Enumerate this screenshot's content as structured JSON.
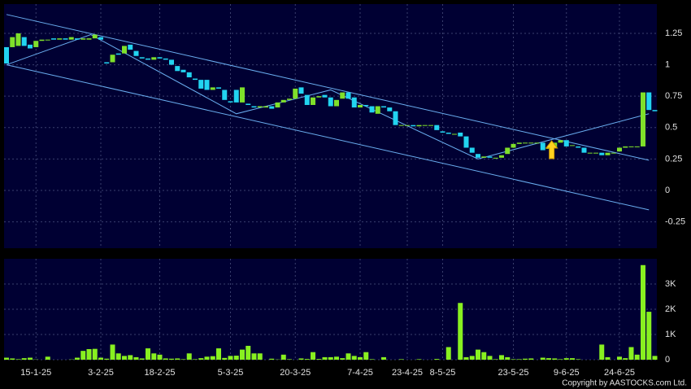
{
  "chart_data": {
    "type": "candlestick",
    "copyright": "Copyright by AASTOCKS.com Ltd.",
    "categories": [
      null,
      null,
      null,
      null,
      null,
      "15-1-25",
      null,
      null,
      null,
      null,
      null,
      null,
      null,
      null,
      null,
      null,
      "3-2-25",
      null,
      null,
      null,
      null,
      null,
      null,
      null,
      null,
      null,
      "18-2-25",
      null,
      null,
      null,
      null,
      null,
      null,
      null,
      null,
      null,
      null,
      null,
      "5-3-25",
      null,
      null,
      null,
      null,
      null,
      null,
      null,
      null,
      null,
      null,
      "20-3-25",
      null,
      null,
      null,
      null,
      null,
      null,
      null,
      null,
      null,
      null,
      "7-4-25",
      null,
      null,
      null,
      null,
      null,
      null,
      null,
      "23-4-25",
      null,
      null,
      null,
      null,
      null,
      "8-5-25",
      null,
      null,
      null,
      null,
      null,
      null,
      null,
      null,
      null,
      null,
      null,
      "23-5-25",
      null,
      null,
      null,
      null,
      null,
      null,
      null,
      null,
      "9-6-25",
      null,
      null,
      null,
      null,
      null,
      null,
      null,
      null,
      "24-6-25",
      null,
      null,
      null,
      null,
      null,
      null
    ],
    "open": [
      1.14,
      1.14,
      1.15,
      1.22,
      1.16,
      1.14,
      1.19,
      1.2,
      1.21,
      1.2,
      1.21,
      1.2,
      1.21,
      1.2,
      1.2,
      1.21,
      1.22,
      1.02,
      1.02,
      1.09,
      1.09,
      1.16,
      1.11,
      1.06,
      1.05,
      1.04,
      1.06,
      1.05,
      1.04,
      0.99,
      0.96,
      0.94,
      0.89,
      0.88,
      0.88,
      0.8,
      0.82,
      0.8,
      0.71,
      0.8,
      0.7,
      0.69,
      0.67,
      0.66,
      0.66,
      0.67,
      0.66,
      0.7,
      0.72,
      0.73,
      0.82,
      0.76,
      0.68,
      0.74,
      0.76,
      0.74,
      0.67,
      0.73,
      0.78,
      0.74,
      0.66,
      0.68,
      0.67,
      0.61,
      0.67,
      0.66,
      0.63,
      0.52,
      0.52,
      0.52,
      0.51,
      0.52,
      0.52,
      0.52,
      0.47,
      0.46,
      0.45,
      0.46,
      0.43,
      0.34,
      0.29,
      0.26,
      0.27,
      0.26,
      0.26,
      0.29,
      0.34,
      0.37,
      0.38,
      0.38,
      0.38,
      0.38,
      0.33,
      0.34,
      0.38,
      0.4,
      0.36,
      0.35,
      0.34,
      0.3,
      0.3,
      0.3,
      0.28,
      0.3,
      0.31,
      0.34,
      0.35,
      0.35,
      0.35,
      0.78,
      0.64
    ],
    "close": [
      1.01,
      1.22,
      1.25,
      1.15,
      1.13,
      1.19,
      1.2,
      1.2,
      1.2,
      1.21,
      1.2,
      1.22,
      1.2,
      1.21,
      1.21,
      1.24,
      1.2,
      1.01,
      1.08,
      1.08,
      1.15,
      1.12,
      1.07,
      1.05,
      1.04,
      1.06,
      1.05,
      1.04,
      1.0,
      0.95,
      0.94,
      0.9,
      0.88,
      0.81,
      0.8,
      0.82,
      0.81,
      0.72,
      0.7,
      0.7,
      0.82,
      0.68,
      0.66,
      0.67,
      0.67,
      0.65,
      0.7,
      0.72,
      0.73,
      0.81,
      0.77,
      0.68,
      0.74,
      0.75,
      0.74,
      0.67,
      0.72,
      0.78,
      0.73,
      0.66,
      0.68,
      0.67,
      0.62,
      0.67,
      0.66,
      0.63,
      0.52,
      0.52,
      0.52,
      0.51,
      0.52,
      0.52,
      0.52,
      0.48,
      0.46,
      0.45,
      0.45,
      0.43,
      0.34,
      0.3,
      0.26,
      0.27,
      0.26,
      0.26,
      0.28,
      0.34,
      0.37,
      0.38,
      0.38,
      0.38,
      0.38,
      0.32,
      0.34,
      0.38,
      0.4,
      0.35,
      0.36,
      0.34,
      0.3,
      0.3,
      0.3,
      0.28,
      0.3,
      0.3,
      0.34,
      0.35,
      0.35,
      0.35,
      0.78,
      0.64,
      0.63
    ],
    "volume": [
      80,
      50,
      20,
      60,
      80,
      10,
      0,
      120,
      0,
      0,
      0,
      10,
      80,
      350,
      420,
      430,
      80,
      40,
      600,
      250,
      150,
      180,
      100,
      50,
      450,
      250,
      200,
      50,
      40,
      50,
      20,
      250,
      20,
      60,
      120,
      140,
      450,
      70,
      150,
      160,
      400,
      550,
      250,
      250,
      0,
      40,
      10,
      200,
      20,
      0,
      50,
      30,
      300,
      30,
      100,
      100,
      120,
      60,
      250,
      150,
      100,
      300,
      20,
      0,
      100,
      0,
      0,
      20,
      0,
      0,
      20,
      0,
      0,
      30,
      0,
      500,
      0,
      2250,
      100,
      150,
      400,
      300,
      150,
      20,
      180,
      100,
      20,
      20,
      40,
      50,
      0,
      80,
      60,
      50,
      20,
      60,
      60,
      20,
      0,
      0,
      0,
      600,
      100,
      0,
      120,
      60,
      500,
      200,
      3750,
      1900,
      150
    ],
    "up_color": "#7fe02a",
    "down_color": "#22d4f0",
    "volume_color": "#88f020",
    "line_color": "#6aaef0",
    "trendlines": [
      {
        "x": [
          0,
          109
        ],
        "y": [
          1.4,
          0.24
        ]
      },
      {
        "x": [
          0,
          109
        ],
        "y": [
          1.0,
          -0.155
        ]
      },
      {
        "x": [
          0,
          14.3,
          39,
          55,
          80,
          109
        ],
        "y": [
          1.0,
          1.24,
          0.61,
          0.8,
          0.25,
          0.61
        ]
      }
    ],
    "ylim": [
      -0.46,
      1.483
    ],
    "yticks": [
      -0.25,
      0,
      0.25,
      0.5,
      0.75,
      1,
      1.25
    ],
    "y2lim": [
      0,
      4000
    ],
    "y2ticks": [
      0,
      {
        "value": 1000,
        "label": "1K"
      },
      {
        "value": 2000,
        "label": "2K"
      },
      {
        "value": 3000,
        "label": "3K"
      }
    ],
    "grid": true
  }
}
